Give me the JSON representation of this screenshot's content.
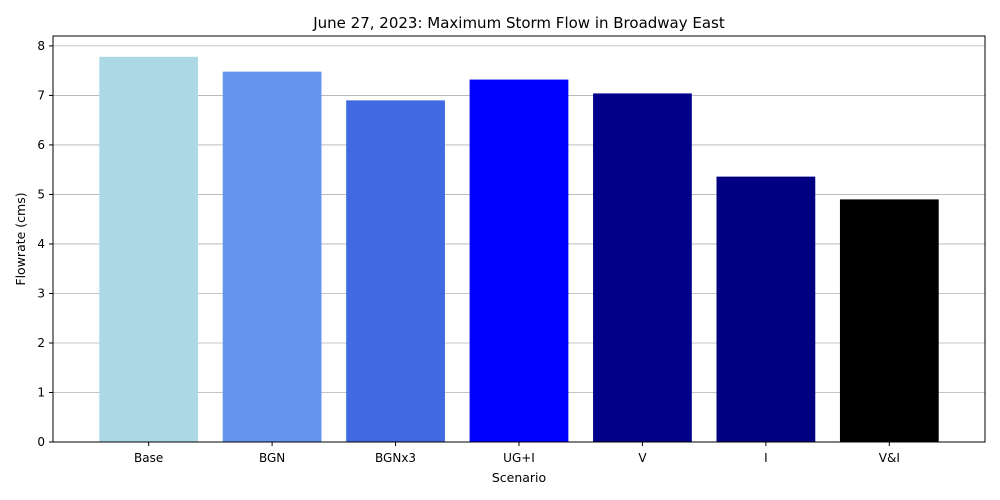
{
  "chart_data": {
    "type": "bar",
    "title": "June 27, 2023: Maximum Storm Flow in Broadway East",
    "xlabel": "Scenario",
    "ylabel": "Flowrate (cms)",
    "categories": [
      "Base",
      "BGN",
      "BGNx3",
      "UG+I",
      "V",
      "I",
      "V&I"
    ],
    "values": [
      7.78,
      7.48,
      6.9,
      7.32,
      7.04,
      5.36,
      4.9
    ],
    "colors": [
      "#add8e6",
      "#6495ed",
      "#4169e1",
      "#0000ff",
      "#00008b",
      "#000080",
      "#000000"
    ],
    "ylim": [
      0,
      8.2
    ],
    "yticks": [
      0,
      1,
      2,
      3,
      4,
      5,
      6,
      7,
      8
    ],
    "grid": "y"
  }
}
